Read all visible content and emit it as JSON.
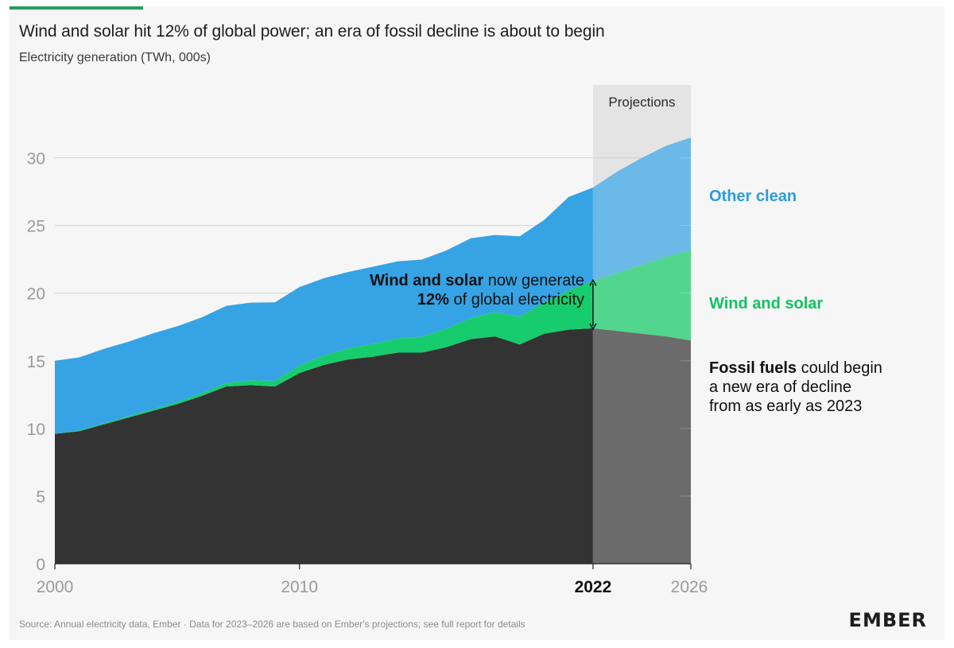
{
  "header": {
    "title": "Wind and solar hit 12% of global power; an era of fossil decline is about to begin",
    "subtitle": "Electricity generation (TWh, 000s)"
  },
  "footer": {
    "source": "Source: Annual electricity data, Ember · Data for 2023–2026 are based on Ember's projections; see full report for details",
    "logo": "EMBER"
  },
  "annotations": {
    "projections": "Projections",
    "other_clean": "Other clean",
    "wind_solar": "Wind and solar",
    "fossil_bold": "Fossil fuels",
    "fossil_rest_1": " could begin",
    "fossil_rest_2": "a new era of decline",
    "fossil_rest_3": "from as early as 2023",
    "ws_bold": "Wind and solar",
    "ws_rest_1": " now generate",
    "ws_pct": "12%",
    "ws_rest_2": " of global electricity"
  },
  "colors": {
    "accent": "#2a9d5c",
    "fossil": "#333333",
    "fossil_proj": "#6b6b6b",
    "wind_solar": "#17cc6c",
    "wind_solar_proj": "#52d68f",
    "other_clean": "#36a3e4",
    "other_clean_proj": "#6bb9e8",
    "proj_band": "#e4e4e4",
    "grid": "#d2d2d2",
    "label_blue": "#2a9ee0",
    "label_green": "#13c261"
  },
  "chart_data": {
    "type": "area",
    "stacked": true,
    "x": [
      2000,
      2001,
      2002,
      2003,
      2004,
      2005,
      2006,
      2007,
      2008,
      2009,
      2010,
      2011,
      2012,
      2013,
      2014,
      2015,
      2016,
      2017,
      2018,
      2019,
      2020,
      2021,
      2022,
      2023,
      2024,
      2025,
      2026
    ],
    "projection_start": 2022,
    "series": [
      {
        "name": "Fossil fuels",
        "values": [
          9.6,
          9.8,
          10.3,
          10.8,
          11.3,
          11.8,
          12.4,
          13.1,
          13.2,
          13.1,
          14.1,
          14.7,
          15.1,
          15.3,
          15.6,
          15.6,
          16.0,
          16.6,
          16.8,
          16.2,
          17.0,
          17.3,
          17.4,
          17.2,
          17.0,
          16.8,
          16.5
        ]
      },
      {
        "name": "Wind and solar",
        "values": [
          0.0,
          0.05,
          0.07,
          0.1,
          0.12,
          0.15,
          0.2,
          0.26,
          0.35,
          0.42,
          0.55,
          0.7,
          0.82,
          0.95,
          1.05,
          1.18,
          1.35,
          1.55,
          1.8,
          2.05,
          2.3,
          2.9,
          3.5,
          4.3,
          5.1,
          5.9,
          6.7
        ]
      },
      {
        "name": "Other clean",
        "values": [
          5.4,
          5.4,
          5.5,
          5.5,
          5.6,
          5.6,
          5.6,
          5.7,
          5.75,
          5.8,
          5.8,
          5.7,
          5.65,
          5.7,
          5.7,
          5.7,
          5.8,
          5.9,
          5.7,
          5.95,
          6.1,
          6.9,
          6.9,
          7.5,
          7.9,
          8.2,
          8.3
        ]
      }
    ],
    "y_ticks": [
      0,
      5,
      10,
      15,
      20,
      25,
      30
    ],
    "x_ticks": [
      2000,
      2010,
      2022,
      2026
    ],
    "ylim": [
      0,
      32
    ],
    "xlim": [
      2000,
      2026
    ],
    "grid": true
  }
}
